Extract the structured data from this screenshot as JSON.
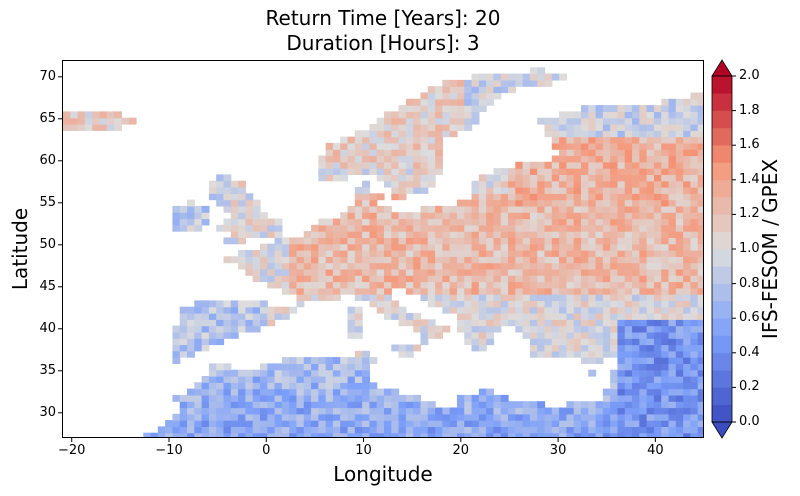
{
  "title_line1": "Return Time [Years]: 20",
  "title_line2": "Duration [Hours]: 3",
  "xlabel": "Longitude",
  "ylabel": "Latitude",
  "colorbar_label": "IFS-FESOM / GPEX",
  "chart_data": {
    "type": "heatmap",
    "title": "Return Time [Years]: 20 / Duration [Hours]: 3",
    "xlabel": "Longitude",
    "ylabel": "Latitude",
    "xlim": [
      -21,
      45
    ],
    "ylim": [
      27,
      72
    ],
    "x_ticks": [
      -20,
      -10,
      0,
      10,
      20,
      30,
      40
    ],
    "y_ticks": [
      30,
      35,
      40,
      45,
      50,
      55,
      60,
      65,
      70
    ],
    "colorbar": {
      "label": "IFS-FESOM / GPEX",
      "range": [
        0.0,
        2.0
      ],
      "ticks": [
        "0.0",
        "0.2",
        "0.4",
        "0.6",
        "0.8",
        "1.0",
        "1.2",
        "1.4",
        "1.6",
        "1.8",
        "2.0"
      ],
      "colormap": "coolwarm",
      "extend": "both"
    },
    "colors": {
      "low": "#3b4cc0",
      "mid": "#dddddd",
      "high": "#b40426"
    }
  }
}
